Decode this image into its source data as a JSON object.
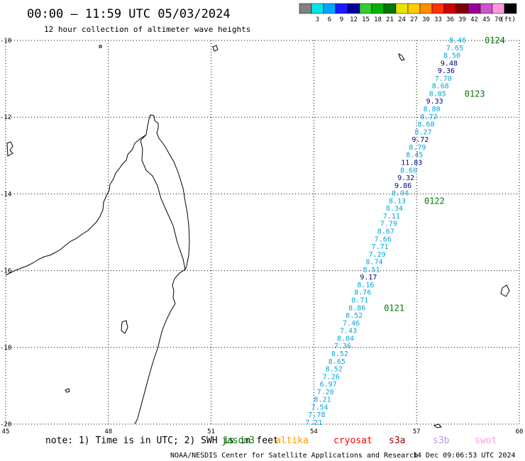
{
  "header": {
    "title": "00:00 – 11:59 UTC 05/03/2024",
    "subtitle": "12 hour collection of altimeter wave heights"
  },
  "legend": {
    "unit": "(ft)",
    "bins": [
      {
        "label": "",
        "color": "#808080"
      },
      {
        "label": "3",
        "color": "#00e5e5"
      },
      {
        "label": "6",
        "color": "#00a5ff"
      },
      {
        "label": "9",
        "color": "#1a1aff"
      },
      {
        "label": "12",
        "color": "#000099"
      },
      {
        "label": "15",
        "color": "#33cc33"
      },
      {
        "label": "18",
        "color": "#00b300"
      },
      {
        "label": "21",
        "color": "#007700"
      },
      {
        "label": "24",
        "color": "#e5e500"
      },
      {
        "label": "27",
        "color": "#ffcc00"
      },
      {
        "label": "30",
        "color": "#ff8c00"
      },
      {
        "label": "33",
        "color": "#ff3300"
      },
      {
        "label": "36",
        "color": "#cc0000"
      },
      {
        "label": "39",
        "color": "#800000"
      },
      {
        "label": "42",
        "color": "#990099"
      },
      {
        "label": "45",
        "color": "#cc55cc"
      },
      {
        "label": "70",
        "color": "#ff99dd"
      },
      {
        "label": "",
        "color": "#000000"
      }
    ]
  },
  "map": {
    "lon_ticks": [
      "45",
      "48",
      "51",
      "54",
      "57",
      "60"
    ],
    "lat_ticks": [
      "-10",
      "-12",
      "-14",
      "-16",
      "-18",
      "-20"
    ],
    "lon_range": [
      45,
      60
    ],
    "lat_range": [
      -20,
      -10
    ]
  },
  "colors": {
    "cyan_values": "#00a5e0",
    "dark_values": "#00008b",
    "time_labels": "#007700"
  },
  "tracks": [
    {
      "lon_start": 58.2,
      "lon_end": 54.0,
      "values": [
        "8.46",
        "7.65",
        "8.50",
        "9.48",
        "9.36",
        "7.70",
        "8.68",
        "8.85",
        "9.33",
        "8.80",
        "8.72",
        "8.68",
        "8.27",
        "9.72",
        "8.79",
        "8.45",
        "11.83",
        "8.60",
        "9.32",
        "9.86",
        "8.94",
        "8.13",
        "8.34",
        "7.11",
        "7.79",
        "8.67",
        "7.66",
        "7.71",
        "7.29",
        "8.74",
        "8.51",
        "9.17",
        "8.16",
        "8.76",
        "8.71",
        "8.86",
        "8.52",
        "7.46",
        "7.43",
        "8.04",
        "7.36",
        "8.52",
        "8.65",
        "8.52",
        "7.26",
        "6.97",
        "7.20",
        "8.21",
        "7.54",
        "7.78",
        "7.21"
      ],
      "time_labels": [
        {
          "text": "0124",
          "index": 0
        },
        {
          "text": "0123",
          "index": 7
        },
        {
          "text": "0122",
          "index": 21
        },
        {
          "text": "0121",
          "index": 35
        }
      ]
    }
  ],
  "footer": {
    "note": "note: 1) Time is in UTC; 2) SWH is in feet",
    "satellites": [
      {
        "name": "jason3",
        "color": "#008000"
      },
      {
        "name": "altika",
        "color": "#ff9900"
      },
      {
        "name": "cryosat",
        "color": "#ff0000"
      },
      {
        "name": "s3a",
        "color": "#990000"
      },
      {
        "name": "s3b",
        "color": "#b399e6"
      },
      {
        "name": "swot",
        "color": "#ff99dd"
      }
    ],
    "credit": "NOAA/NESDIS Center for Satellite Applications and Research",
    "timestamp": "14 Dec 09:06:53 UTC 2024"
  }
}
